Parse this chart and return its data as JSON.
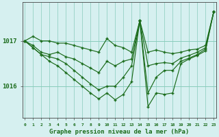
{
  "background_color": "#d6f0f0",
  "grid_color": "#88ccbb",
  "line_color": "#1a6b1a",
  "marker_color": "#1a6b1a",
  "title": "Graphe pression niveau de la mer (hPa)",
  "xlabel_ticks": [
    0,
    1,
    2,
    3,
    4,
    5,
    6,
    7,
    8,
    9,
    10,
    11,
    12,
    13,
    14,
    15,
    16,
    17,
    18,
    19,
    20,
    21,
    22,
    23
  ],
  "yticks": [
    1016,
    1017
  ],
  "ylim": [
    1015.3,
    1017.85
  ],
  "xlim": [
    -0.3,
    23.3
  ],
  "series": [
    [
      1017.0,
      1017.1,
      1017.0,
      1017.0,
      1016.95,
      1016.95,
      1016.9,
      1016.85,
      1016.8,
      1016.75,
      1017.05,
      1016.9,
      1016.85,
      1016.75,
      1017.45,
      1016.75,
      1016.8,
      1016.75,
      1016.72,
      1016.75,
      1016.8,
      1016.82,
      1016.9,
      1017.65
    ],
    [
      1017.0,
      1016.9,
      1016.75,
      1016.7,
      1016.75,
      1016.65,
      1016.6,
      1016.5,
      1016.4,
      1016.3,
      1016.55,
      1016.45,
      1016.55,
      1016.6,
      1017.45,
      1016.45,
      1016.5,
      1016.52,
      1016.5,
      1016.62,
      1016.68,
      1016.75,
      1016.85,
      1017.65
    ],
    [
      1017.0,
      1016.85,
      1016.7,
      1016.65,
      1016.6,
      1016.5,
      1016.35,
      1016.2,
      1016.05,
      1015.92,
      1016.0,
      1016.0,
      1016.2,
      1016.45,
      1017.45,
      1015.85,
      1016.2,
      1016.35,
      1016.35,
      1016.55,
      1016.62,
      1016.7,
      1016.82,
      1017.65
    ],
    [
      1017.0,
      1016.85,
      1016.7,
      1016.55,
      1016.45,
      1016.3,
      1016.15,
      1016.0,
      1015.85,
      1015.72,
      1015.85,
      1015.7,
      1015.82,
      1016.1,
      1017.45,
      1015.55,
      1015.85,
      1015.82,
      1015.85,
      1016.5,
      1016.6,
      1016.68,
      1016.78,
      1017.65
    ]
  ]
}
